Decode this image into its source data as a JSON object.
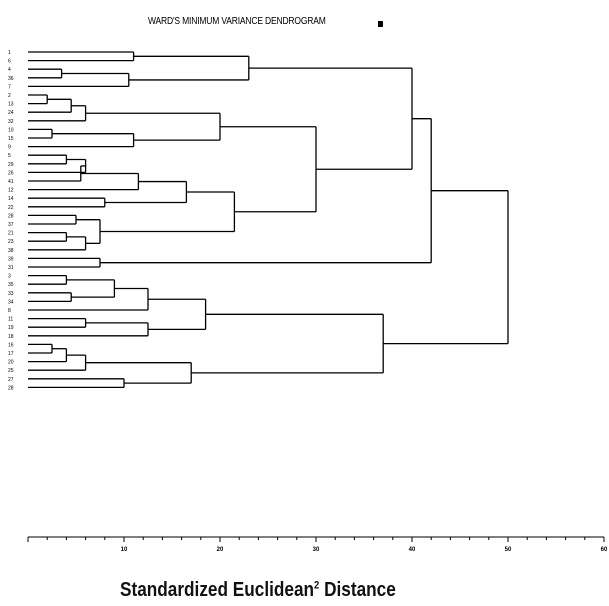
{
  "chart_data": {
    "type": "dendrogram",
    "title": "WARD'S MINIMUM VARIANCE DENDROGRAM",
    "xlabel_main": "Standardized Euclidean",
    "xlabel_sup": "2",
    "xlabel_tail": " Distance",
    "xlim": [
      0,
      60
    ],
    "xticks": [
      10,
      20,
      30,
      40,
      50,
      60
    ],
    "leaves": [
      "1",
      "6",
      "4",
      "36",
      "7",
      "2",
      "13",
      "24",
      "32",
      "10",
      "15",
      "9",
      "5",
      "29",
      "26",
      "41",
      "12",
      "14",
      "22",
      "28",
      "37",
      "21",
      "23",
      "38",
      "39",
      "31",
      "3",
      "35",
      "33",
      "34",
      "8",
      "11",
      "19",
      "18",
      "16",
      "17",
      "20",
      "25",
      "27",
      "28"
    ],
    "merges": [
      {
        "a": "L0",
        "b": "L1",
        "h": 11
      },
      {
        "a": "L2",
        "b": "L3",
        "h": 3.5
      },
      {
        "a": "M1",
        "b": "L4",
        "h": 10.5
      },
      {
        "a": "M0",
        "b": "M2",
        "h": 23
      },
      {
        "a": "L5",
        "b": "L6",
        "h": 2
      },
      {
        "a": "M4",
        "b": "L7",
        "h": 4.5
      },
      {
        "a": "M5",
        "b": "L8",
        "h": 6
      },
      {
        "a": "L9",
        "b": "L10",
        "h": 2.5
      },
      {
        "a": "M7",
        "b": "L11",
        "h": 11
      },
      {
        "a": "M6",
        "b": "M8",
        "h": 20
      },
      {
        "a": "L12",
        "b": "L13",
        "h": 4
      },
      {
        "a": "M10",
        "b": "L14",
        "h": 6
      },
      {
        "a": "M11",
        "b": "L15",
        "h": 5.5
      },
      {
        "a": "M12",
        "b": "L16",
        "h": 11.5
      },
      {
        "a": "L17",
        "b": "L18",
        "h": 8
      },
      {
        "a": "M13",
        "b": "M14",
        "h": 16.5
      },
      {
        "a": "L19",
        "b": "L20",
        "h": 5
      },
      {
        "a": "L21",
        "b": "L22",
        "h": 4
      },
      {
        "a": "M17",
        "b": "L23",
        "h": 6
      },
      {
        "a": "M16",
        "b": "M18",
        "h": 7.5
      },
      {
        "a": "M15",
        "b": "M19",
        "h": 21.5
      },
      {
        "a": "M9",
        "b": "M20",
        "h": 30
      },
      {
        "a": "M3",
        "b": "M21",
        "h": 40
      },
      {
        "a": "L24",
        "b": "L25",
        "h": 7.5
      },
      {
        "a": "M22",
        "b": "M23",
        "h": 42
      },
      {
        "a": "L26",
        "b": "L27",
        "h": 4
      },
      {
        "a": "L28",
        "b": "L29",
        "h": 4.5
      },
      {
        "a": "M25",
        "b": "M26",
        "h": 9
      },
      {
        "a": "M27",
        "b": "L30",
        "h": 12.5
      },
      {
        "a": "L31",
        "b": "L32",
        "h": 6
      },
      {
        "a": "M29",
        "b": "L33",
        "h": 12.5
      },
      {
        "a": "M28",
        "b": "M30",
        "h": 18.5
      },
      {
        "a": "L34",
        "b": "L35",
        "h": 2.5
      },
      {
        "a": "M32",
        "b": "L36",
        "h": 4
      },
      {
        "a": "M33",
        "b": "L37",
        "h": 6
      },
      {
        "a": "L38",
        "b": "L39",
        "h": 10
      },
      {
        "a": "M34",
        "b": "M35",
        "h": 17
      },
      {
        "a": "M31",
        "b": "M36",
        "h": 37
      },
      {
        "a": "M24",
        "b": "M37",
        "h": 50
      }
    ]
  }
}
